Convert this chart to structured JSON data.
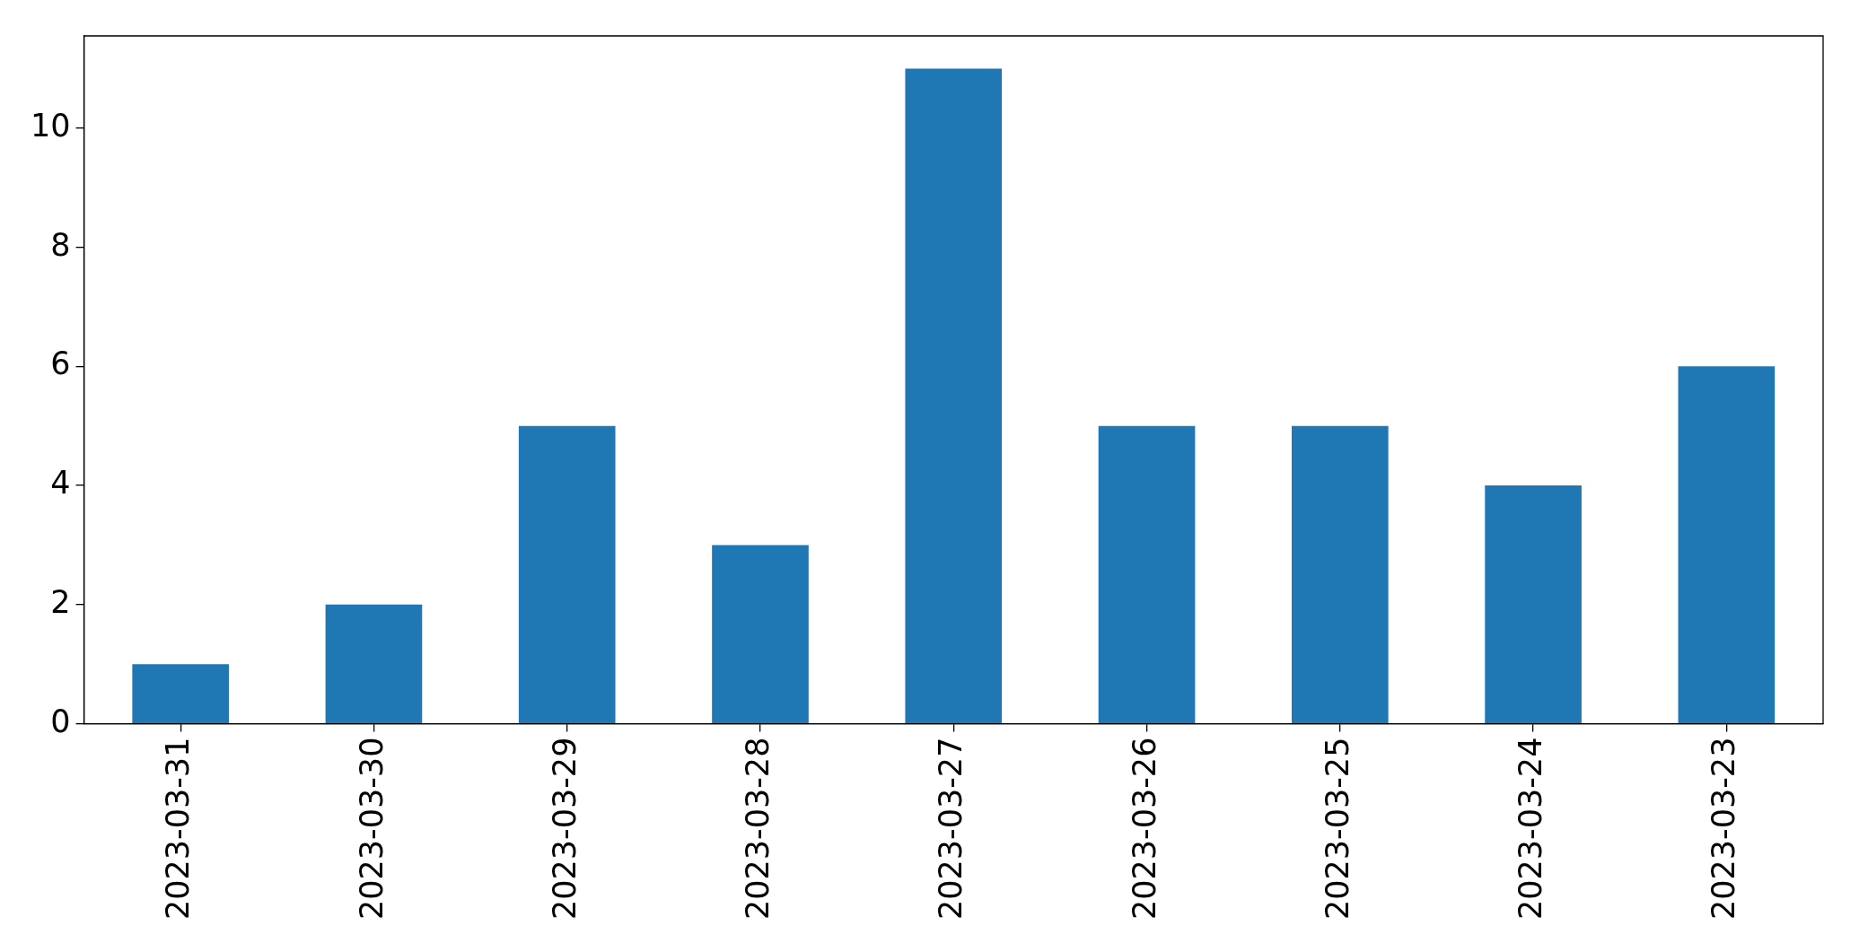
{
  "chart_data": {
    "type": "bar",
    "categories": [
      "2023-03-31",
      "2023-03-30",
      "2023-03-29",
      "2023-03-28",
      "2023-03-27",
      "2023-03-26",
      "2023-03-25",
      "2023-03-24",
      "2023-03-23"
    ],
    "values": [
      1,
      2,
      5,
      3,
      11,
      5,
      5,
      4,
      6
    ],
    "color": "#1f77b4",
    "ylim": [
      0,
      11.55
    ],
    "yticks": [
      0,
      2,
      4,
      6,
      8,
      10
    ],
    "grid": false,
    "legend": false
  }
}
